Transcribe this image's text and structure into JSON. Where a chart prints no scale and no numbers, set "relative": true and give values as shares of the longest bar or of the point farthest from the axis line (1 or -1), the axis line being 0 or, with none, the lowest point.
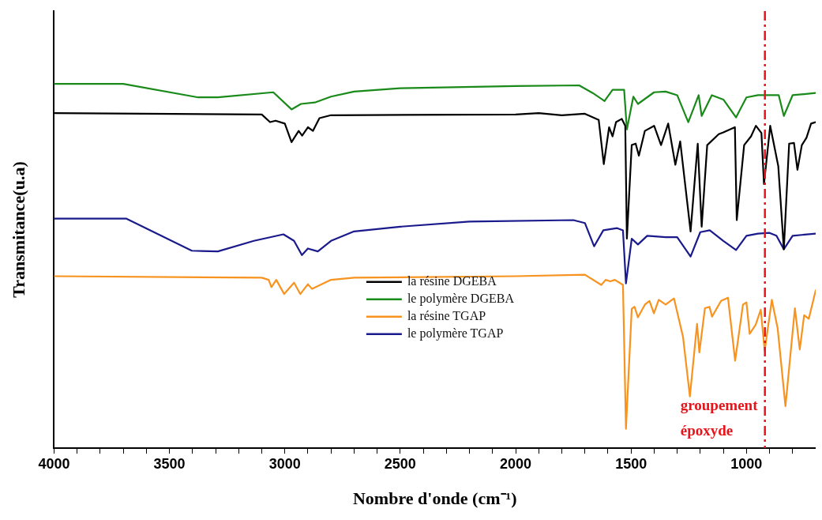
{
  "chart_data": {
    "type": "line",
    "relative": true,
    "xlabel": "Nombre d'onde (cm⁻¹)",
    "ylabel": "Transmitance(u.a)",
    "xlim": [
      4000,
      700
    ],
    "xticks": [
      4000,
      {
        "value": 3900,
        "label": null
      },
      {
        "value": 3800,
        "label": null
      },
      {
        "value": 3700,
        "label": null
      },
      {
        "value": 3600,
        "label": null
      },
      3500,
      {
        "value": 3400,
        "label": null
      },
      {
        "value": 3300,
        "label": null
      },
      {
        "value": 3200,
        "label": null
      },
      {
        "value": 3100,
        "label": null
      },
      3000,
      {
        "value": 2900,
        "label": null
      },
      {
        "value": 2800,
        "label": null
      },
      {
        "value": 2700,
        "label": null
      },
      {
        "value": 2600,
        "label": null
      },
      2500,
      {
        "value": 2400,
        "label": null
      },
      {
        "value": 2300,
        "label": null
      },
      {
        "value": 2200,
        "label": null
      },
      {
        "value": 2100,
        "label": null
      },
      2000,
      {
        "value": 1900,
        "label": null
      },
      {
        "value": 1800,
        "label": null
      },
      {
        "value": 1700,
        "label": null
      },
      {
        "value": 1600,
        "label": null
      },
      1500,
      {
        "value": 1400,
        "label": null
      },
      {
        "value": 1300,
        "label": null
      },
      {
        "value": 1200,
        "label": null
      },
      {
        "value": 1100,
        "label": null
      },
      1000,
      {
        "value": 900,
        "label": null
      },
      {
        "value": 800,
        "label": null
      }
    ],
    "legend": "center",
    "grid": false,
    "marker": "none",
    "line_style": "solid",
    "ref_lines": [
      {
        "axis": "x",
        "value": 920,
        "label": "groupement époxyde",
        "color": "#e8141b",
        "line_style": "dashdot"
      }
    ],
    "series": [
      {
        "name": "la résine DGEBA",
        "color": "#000000",
        "x": [
          4000,
          3100,
          3064,
          3040,
          3000,
          2971,
          2940,
          2925,
          2900,
          2878,
          2850,
          2800,
          2000,
          1900,
          1800,
          1700,
          1640,
          1618,
          1595,
          1580,
          1565,
          1540,
          1525,
          1518,
          1497,
          1480,
          1466,
          1440,
          1400,
          1370,
          1339,
          1308,
          1287,
          1242,
          1211,
          1194,
          1170,
          1120,
          1100,
          1050,
          1042,
          1010,
          980,
          959,
          935,
          924,
          897,
          862,
          838,
          815,
          794,
          779,
          760,
          740,
          720,
          700
        ],
        "values": [
          0.92,
          0.916,
          0.895,
          0.899,
          0.891,
          0.84,
          0.871,
          0.858,
          0.881,
          0.871,
          0.906,
          0.914,
          0.916,
          0.92,
          0.914,
          0.918,
          0.901,
          0.78,
          0.881,
          0.856,
          0.895,
          0.904,
          0.885,
          0.575,
          0.832,
          0.836,
          0.803,
          0.871,
          0.885,
          0.832,
          0.891,
          0.778,
          0.842,
          0.595,
          0.836,
          0.608,
          0.832,
          0.862,
          0.867,
          0.881,
          0.626,
          0.832,
          0.856,
          0.885,
          0.865,
          0.725,
          0.885,
          0.774,
          0.546,
          0.836,
          0.838,
          0.764,
          0.832,
          0.852,
          0.891,
          0.895
        ]
      },
      {
        "name": "le polymère DGEBA",
        "color": "#1a8a1a",
        "x": [
          4000,
          3700,
          3375,
          3290,
          3050,
          2971,
          2930,
          2870,
          2800,
          2700,
          2500,
          2000,
          1725,
          1666,
          1615,
          1580,
          1530,
          1518,
          1490,
          1470,
          1400,
          1350,
          1300,
          1252,
          1207,
          1194,
          1150,
          1100,
          1045,
          1000,
          950,
          900,
          860,
          838,
          800,
          700
        ],
        "values": [
          1.0,
          1.0,
          0.963,
          0.963,
          0.977,
          0.93,
          0.945,
          0.949,
          0.965,
          0.979,
          0.988,
          0.994,
          0.996,
          0.975,
          0.953,
          0.984,
          0.984,
          0.875,
          0.965,
          0.945,
          0.977,
          0.979,
          0.969,
          0.895,
          0.969,
          0.912,
          0.969,
          0.957,
          0.908,
          0.963,
          0.969,
          0.969,
          0.969,
          0.912,
          0.969,
          0.975
        ]
      },
      {
        "name": "la résine TGAP",
        "color": "#f7931e",
        "x": [
          4000,
          3100,
          3070,
          3058,
          3037,
          3003,
          2960,
          2933,
          2900,
          2882,
          2800,
          2700,
          2000,
          1700,
          1629,
          1610,
          1590,
          1570,
          1535,
          1522,
          1497,
          1485,
          1470,
          1440,
          1420,
          1401,
          1380,
          1350,
          1314,
          1275,
          1245,
          1214,
          1204,
          1180,
          1160,
          1149,
          1110,
          1080,
          1049,
          1015,
          1000,
          986,
          960,
          938,
          921,
          890,
          865,
          831,
          790,
          769,
          750,
          730,
          700
        ],
        "values": [
          0.472,
          0.468,
          0.462,
          0.442,
          0.462,
          0.423,
          0.454,
          0.423,
          0.45,
          0.437,
          0.462,
          0.468,
          0.472,
          0.476,
          0.448,
          0.462,
          0.458,
          0.462,
          0.448,
          0.053,
          0.382,
          0.388,
          0.359,
          0.394,
          0.404,
          0.37,
          0.407,
          0.394,
          0.411,
          0.306,
          0.142,
          0.341,
          0.263,
          0.384,
          0.388,
          0.361,
          0.404,
          0.413,
          0.24,
          0.394,
          0.4,
          0.314,
          0.339,
          0.38,
          0.267,
          0.407,
          0.33,
          0.115,
          0.384,
          0.271,
          0.365,
          0.355,
          0.433
        ]
      },
      {
        "name": "le polymère TGAP",
        "color": "#1a1a8c",
        "x": [
          4000,
          3686,
          3403,
          3290,
          3134,
          3006,
          2960,
          2926,
          2900,
          2857,
          2800,
          2700,
          2500,
          2200,
          1750,
          1700,
          1660,
          1620,
          1560,
          1535,
          1522,
          1497,
          1470,
          1430,
          1350,
          1300,
          1242,
          1200,
          1159,
          1100,
          1045,
          1000,
          950,
          900,
          870,
          838,
          800,
          700
        ],
        "values": [
          0.63,
          0.63,
          0.542,
          0.54,
          0.569,
          0.587,
          0.569,
          0.53,
          0.548,
          0.54,
          0.569,
          0.595,
          0.608,
          0.622,
          0.626,
          0.618,
          0.554,
          0.598,
          0.604,
          0.598,
          0.452,
          0.575,
          0.559,
          0.583,
          0.579,
          0.579,
          0.526,
          0.593,
          0.598,
          0.569,
          0.544,
          0.583,
          0.589,
          0.591,
          0.583,
          0.546,
          0.583,
          0.589
        ]
      }
    ]
  }
}
